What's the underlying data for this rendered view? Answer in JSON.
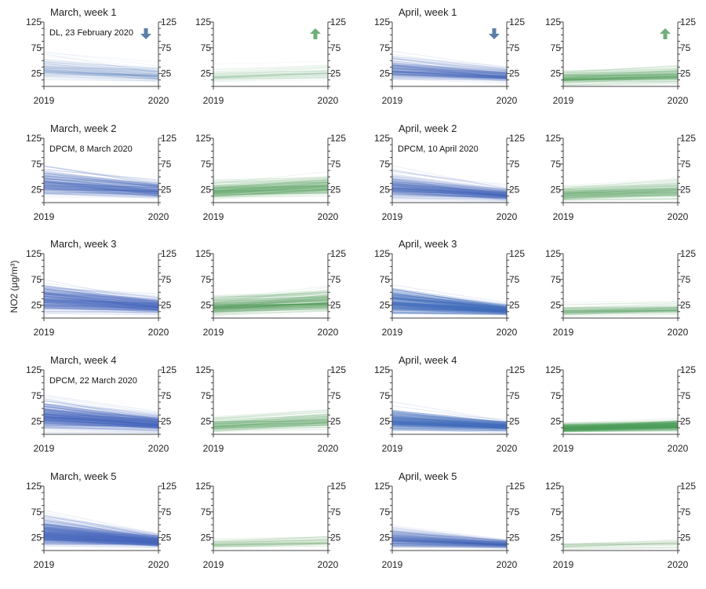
{
  "ylabel": "NO2 (μg/m³)",
  "colors": {
    "decrease": "#4a6fbf",
    "increase": "#52a05c",
    "axis": "#444444",
    "text": "#222222",
    "arrow_down": "#5b7fa8",
    "arrow_up": "#6fae7a"
  },
  "chart_data": {
    "type": "line",
    "description_of_encoding": "slope graphs; each panel contains many monitoring-station lines from 2019 to 2020, split into decreasing and increasing stations",
    "x": [
      "2019",
      "2020"
    ],
    "xlabel": "",
    "ylabel": "NO2 (μg/m³)",
    "ylim": [
      0,
      125
    ],
    "yticks": [
      25,
      75,
      125
    ],
    "grid": false,
    "legend_icons": [
      {
        "panel": "march-week-1-decrease",
        "icon": "arrow-down-icon",
        "meaning": "decrease"
      },
      {
        "panel": "march-week-1-increase",
        "icon": "arrow-up-icon",
        "meaning": "increase"
      },
      {
        "panel": "april-week-1-decrease",
        "icon": "arrow-down-icon",
        "meaning": "decrease"
      },
      {
        "panel": "april-week-1-increase",
        "icon": "arrow-up-icon",
        "meaning": "increase"
      }
    ],
    "panels": [
      {
        "id": "march-week-1-decrease",
        "group": "March",
        "title": "March, week 1",
        "annotation": "DL, 23 February 2020",
        "direction": "decrease",
        "n_lines": 110,
        "v2019_mean": 32,
        "v2019_sd": 13,
        "v2020_mean": 20,
        "v2020_sd": 8,
        "alpha": 0.07
      },
      {
        "id": "march-week-1-increase",
        "group": "March",
        "title": "",
        "annotation": "",
        "direction": "increase",
        "n_lines": 70,
        "v2019_mean": 20,
        "v2019_sd": 8,
        "v2020_mean": 26,
        "v2020_sd": 9,
        "alpha": 0.05
      },
      {
        "id": "april-week-1-decrease",
        "group": "April",
        "title": "April, week 1",
        "annotation": "",
        "direction": "decrease",
        "n_lines": 170,
        "v2019_mean": 32,
        "v2019_sd": 13,
        "v2020_mean": 20,
        "v2020_sd": 7,
        "alpha": 0.12
      },
      {
        "id": "april-week-1-increase",
        "group": "April",
        "title": "",
        "annotation": "",
        "direction": "increase",
        "n_lines": 130,
        "v2019_mean": 15,
        "v2019_sd": 7,
        "v2020_mean": 20,
        "v2020_sd": 8,
        "alpha": 0.1
      },
      {
        "id": "march-week-2-decrease",
        "group": "March",
        "title": "March, week 2",
        "annotation": "DPCM, 8 March 2020",
        "direction": "decrease",
        "n_lines": 200,
        "v2019_mean": 35,
        "v2019_sd": 15,
        "v2020_mean": 22,
        "v2020_sd": 9,
        "alpha": 0.12
      },
      {
        "id": "march-week-2-increase",
        "group": "March",
        "title": "",
        "annotation": "",
        "direction": "increase",
        "n_lines": 160,
        "v2019_mean": 22,
        "v2019_sd": 10,
        "v2020_mean": 30,
        "v2020_sd": 12,
        "alpha": 0.1
      },
      {
        "id": "april-week-2-decrease",
        "group": "April",
        "title": "April, week 2",
        "annotation": "DPCM, 10 April 2020",
        "direction": "decrease",
        "n_lines": 220,
        "v2019_mean": 30,
        "v2019_sd": 13,
        "v2020_mean": 15,
        "v2020_sd": 6,
        "alpha": 0.12
      },
      {
        "id": "april-week-2-increase",
        "group": "April",
        "title": "",
        "annotation": "",
        "direction": "increase",
        "n_lines": 120,
        "v2019_mean": 15,
        "v2019_sd": 8,
        "v2020_mean": 22,
        "v2020_sd": 10,
        "alpha": 0.1
      },
      {
        "id": "march-week-3-decrease",
        "group": "March",
        "title": "March, week 3",
        "annotation": "",
        "direction": "decrease",
        "n_lines": 260,
        "v2019_mean": 35,
        "v2019_sd": 14,
        "v2020_mean": 22,
        "v2020_sd": 8,
        "alpha": 0.13
      },
      {
        "id": "march-week-3-increase",
        "group": "March",
        "title": "",
        "annotation": "",
        "direction": "increase",
        "n_lines": 170,
        "v2019_mean": 20,
        "v2019_sd": 9,
        "v2020_mean": 30,
        "v2020_sd": 11,
        "alpha": 0.12
      },
      {
        "id": "april-week-3-decrease",
        "group": "April",
        "title": "April, week 3",
        "annotation": "",
        "direction": "decrease",
        "n_lines": 300,
        "v2019_mean": 30,
        "v2019_sd": 14,
        "v2020_mean": 15,
        "v2020_sd": 5,
        "alpha": 0.14
      },
      {
        "id": "april-week-3-increase",
        "group": "April",
        "title": "",
        "annotation": "",
        "direction": "increase",
        "n_lines": 80,
        "v2019_mean": 13,
        "v2019_sd": 6,
        "v2020_mean": 16,
        "v2020_sd": 6,
        "alpha": 0.09
      },
      {
        "id": "march-week-4-decrease",
        "group": "March",
        "title": "March, week 4",
        "annotation": "DPCM, 22 March 2020",
        "direction": "decrease",
        "n_lines": 320,
        "v2019_mean": 35,
        "v2019_sd": 15,
        "v2020_mean": 20,
        "v2020_sd": 8,
        "alpha": 0.13
      },
      {
        "id": "march-week-4-increase",
        "group": "March",
        "title": "",
        "annotation": "",
        "direction": "increase",
        "n_lines": 110,
        "v2019_mean": 16,
        "v2019_sd": 8,
        "v2020_mean": 25,
        "v2020_sd": 10,
        "alpha": 0.1
      },
      {
        "id": "april-week-4-decrease",
        "group": "April",
        "title": "April, week 4",
        "annotation": "",
        "direction": "decrease",
        "n_lines": 260,
        "v2019_mean": 25,
        "v2019_sd": 11,
        "v2020_mean": 15,
        "v2020_sd": 5,
        "alpha": 0.14
      },
      {
        "id": "april-week-4-increase",
        "group": "April",
        "title": "",
        "annotation": "",
        "direction": "increase",
        "n_lines": 200,
        "v2019_mean": 12,
        "v2019_sd": 5,
        "v2020_mean": 17,
        "v2020_sd": 6,
        "alpha": 0.15
      },
      {
        "id": "march-week-5-decrease",
        "group": "March",
        "title": "March, week 5",
        "annotation": "",
        "direction": "decrease",
        "n_lines": 380,
        "v2019_mean": 33,
        "v2019_sd": 15,
        "v2020_mean": 17,
        "v2020_sd": 6,
        "alpha": 0.13
      },
      {
        "id": "march-week-5-increase",
        "group": "March",
        "title": "",
        "annotation": "",
        "direction": "increase",
        "n_lines": 60,
        "v2019_mean": 12,
        "v2019_sd": 5,
        "v2020_mean": 17,
        "v2020_sd": 6,
        "alpha": 0.07
      },
      {
        "id": "april-week-5-decrease",
        "group": "April",
        "title": "April, week 5",
        "annotation": "",
        "direction": "decrease",
        "n_lines": 200,
        "v2019_mean": 22,
        "v2019_sd": 11,
        "v2020_mean": 12,
        "v2020_sd": 4,
        "alpha": 0.12
      },
      {
        "id": "april-week-5-increase",
        "group": "April",
        "title": "",
        "annotation": "",
        "direction": "increase",
        "n_lines": 40,
        "v2019_mean": 8,
        "v2019_sd": 4,
        "v2020_mean": 12,
        "v2020_sd": 5,
        "alpha": 0.06
      }
    ]
  }
}
